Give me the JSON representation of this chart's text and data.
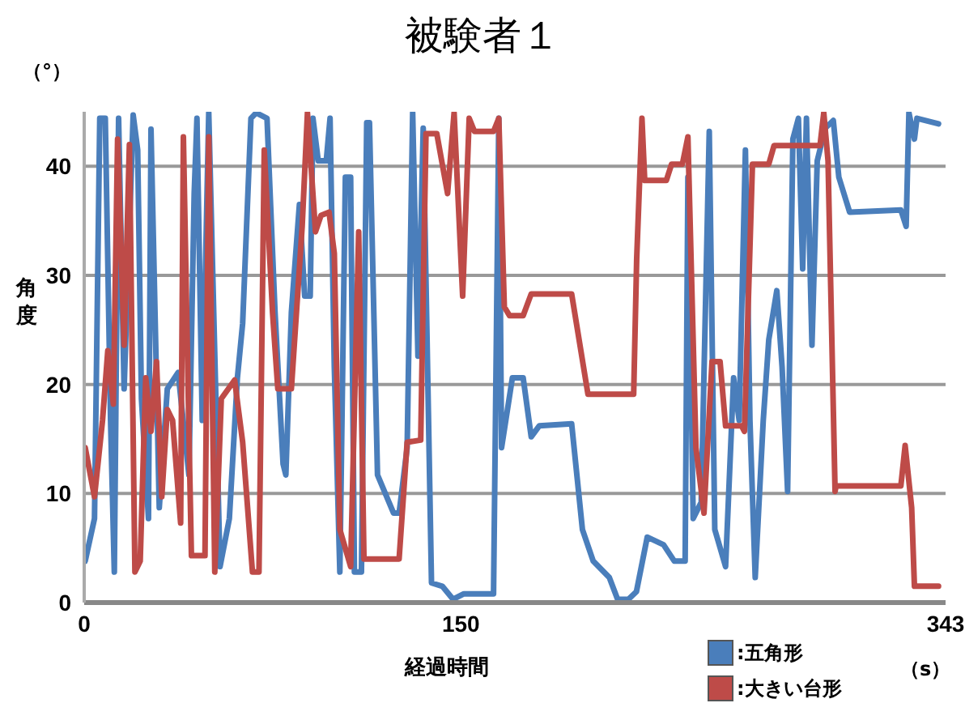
{
  "chart_data": {
    "type": "line",
    "title": "被験者１",
    "xlabel": "経過時間",
    "ylabel": "角度",
    "annotations": [
      "（°）",
      "（s）"
    ],
    "xlim": [
      0,
      343
    ],
    "xticks": [
      0,
      150,
      343
    ],
    "ylim": [
      0,
      45
    ],
    "yticks": [
      0,
      10,
      20,
      30,
      40
    ],
    "grid": "y",
    "legend": "bottom right",
    "marker": "none",
    "line_style": "solid",
    "series": [
      {
        "name": ":五角形",
        "color": "#4a7ebb",
        "x": [
          0.4,
          4.1,
          6.2,
          8.4,
          10.5,
          12.0,
          13.7,
          15.9,
          19.5,
          21.3,
          22.8,
          25.6,
          26.6,
          29.9,
          33.1,
          37.4,
          41.7,
          43.8,
          44.9,
          47.0,
          49.6,
          54.1,
          57.8,
          61.0,
          63.1,
          66.4,
          68.5,
          72.8,
          76.0,
          79.2,
          80.3,
          82.5,
          85.7,
          87.8,
          90.0,
          91.1,
          93.2,
          96.4,
          97.9,
          99.6,
          101.8,
          104.0,
          106.1,
          107.6,
          110.4,
          112.5,
          113.6,
          116.8,
          123.2,
          125.4,
          128.6,
          130.8,
          132.9,
          135.0,
          138.3,
          142.6,
          146.9,
          151.2,
          163.0,
          165.1,
          166.2,
          170.5,
          174.8,
          178.0,
          181.2,
          194.1,
          198.4,
          202.7,
          209.1,
          212.4,
          216.7,
          219.9,
          224.2,
          230.7,
          235.0,
          239.3,
          240.4,
          242.5,
          245.7,
          248.9,
          251.1,
          255.4,
          258.6,
          260.8,
          263.3,
          265.1,
          267.2,
          270.4,
          272.6,
          275.8,
          277.9,
          280.1,
          282.2,
          284.4,
          286.1,
          287.6,
          289.8,
          291.9,
          295.1,
          298.3,
          300.5,
          304.8,
          325.2,
          327.3,
          328.4,
          330.6,
          331.6,
          340.2
        ],
        "values": [
          3.8,
          7.7,
          44.4,
          44.4,
          16.7,
          2.8,
          44.4,
          19.6,
          44.7,
          41.5,
          18.7,
          7.7,
          43.4,
          8.7,
          19.6,
          21.1,
          11.7,
          37.5,
          44.4,
          16.7,
          44.9,
          3.3,
          7.7,
          20.6,
          25.6,
          44.4,
          44.9,
          44.4,
          26.6,
          12.7,
          11.7,
          26.6,
          36.5,
          28.1,
          28.1,
          44.4,
          40.5,
          40.5,
          44.4,
          21.6,
          2.8,
          39,
          39,
          2.8,
          2.8,
          44,
          44,
          11.7,
          8.2,
          8.2,
          14.2,
          44.9,
          22.6,
          43.5,
          1.8,
          1.5,
          0.3,
          0.8,
          0.8,
          44.4,
          14.2,
          20.6,
          20.6,
          15.2,
          16.2,
          16.4,
          6.7,
          3.8,
          2.3,
          0.3,
          0.3,
          1.0,
          6.0,
          5.3,
          3.8,
          3.8,
          39,
          7.7,
          9.2,
          43.2,
          6.7,
          3.3,
          20.6,
          16.7,
          41.5,
          16.7,
          2.3,
          16.7,
          24.1,
          28.6,
          21.6,
          10.2,
          42.5,
          44.4,
          30.6,
          44.4,
          23.6,
          40.5,
          43.5,
          44.2,
          39,
          35.8,
          36,
          34.5,
          44.9,
          42.5,
          44.4,
          43.9
        ]
      },
      {
        "name": ":大きい台形",
        "color": "#be4b48",
        "x": [
          0.4,
          4.1,
          7.3,
          9.4,
          11.6,
          13.3,
          15.9,
          18.0,
          20.2,
          22.3,
          24.5,
          26.6,
          28.8,
          30.9,
          33.1,
          35.2,
          38.4,
          39.5,
          41.7,
          42.7,
          48.1,
          49.6,
          52.0,
          54.6,
          59.9,
          63.1,
          67.0,
          69.6,
          71.7,
          75.0,
          77.1,
          82.5,
          86.8,
          88.9,
          92.1,
          94.3,
          97.5,
          99.6,
          101.8,
          106.1,
          109.3,
          111.4,
          125.4,
          128.6,
          134.0,
          136.1,
          140.4,
          144.7,
          147.3,
          150.7,
          153.3,
          155.4,
          163.0,
          165.1,
          167.3,
          169.4,
          174.8,
          178.0,
          194.1,
          200.6,
          218.8,
          220.0,
          222.1,
          223.2,
          231.8,
          233.9,
          238.2,
          240.4,
          243.6,
          246.8,
          250.0,
          253.2,
          255.4,
          261.8,
          262.9,
          266.1,
          272.6,
          274.7,
          293.0,
          294.5,
          296.2,
          299.0,
          299.4,
          325.2,
          326.9,
          329.5,
          330.6,
          340.2
        ],
        "values": [
          14.2,
          9.7,
          16.7,
          23.1,
          18.2,
          42.5,
          23.6,
          42,
          2.8,
          3.8,
          20.6,
          15.7,
          22.1,
          9.7,
          17.7,
          16.7,
          7.3,
          42.7,
          15.7,
          4.3,
          4.3,
          42.7,
          2.8,
          18.7,
          20.4,
          14.7,
          2.8,
          2.8,
          41.5,
          26.6,
          19.6,
          19.6,
          34.5,
          44.9,
          34,
          35.5,
          35.8,
          32,
          6.7,
          3.3,
          34,
          4,
          4,
          14.7,
          14.9,
          43,
          43,
          37.5,
          44.9,
          28.1,
          44.4,
          43.2,
          43.2,
          44.4,
          27.1,
          26.3,
          26.3,
          28.3,
          28.3,
          19.1,
          19.1,
          31.5,
          44.4,
          38.7,
          38.7,
          40.2,
          40.2,
          42.7,
          14.2,
          8.2,
          22.1,
          22.1,
          16.2,
          16.2,
          15.7,
          40.2,
          40.2,
          41.9,
          41.9,
          44.9,
          40.5,
          10.2,
          10.7,
          10.7,
          14.4,
          8.7,
          1.5,
          1.5
        ]
      }
    ]
  }
}
